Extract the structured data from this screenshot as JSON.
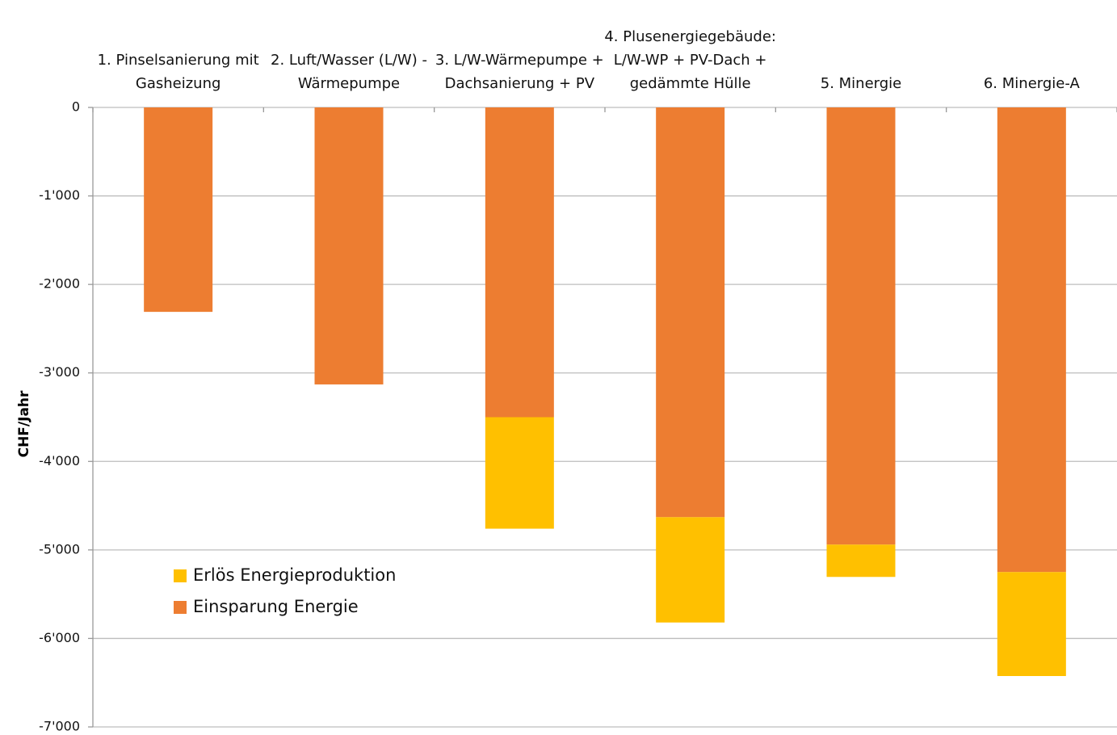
{
  "chart_data": {
    "type": "stacked_bar",
    "y_label": "CHF/Jahr",
    "categories": [
      "1. Pinselsanierung mit Gasheizung",
      "2. Luft/Wasser (L/W) - Wärmepumpe",
      "3. L/W-Wärmepumpe + Dachsanierung + PV",
      "4. Plusenergiegebäude: L/W-WP + PV-Dach + gedämmte Hülle",
      "5. Minergie",
      "6. Minergie-A"
    ],
    "series": [
      {
        "name": "Einsparung Energie",
        "color": "#ED7D31",
        "values": [
          -2310,
          -3130,
          -3500,
          -4630,
          -4940,
          -5250
        ]
      },
      {
        "name": "Erlös Energieproduktion",
        "color": "#FFC000",
        "values": [
          0,
          0,
          -1260,
          -1190,
          -365,
          -1175
        ]
      }
    ],
    "ylim": [
      -7000,
      0
    ],
    "yticks": [
      0,
      {
        "value": -1000,
        "label": "-1'000"
      },
      {
        "value": -2000,
        "label": "-2'000"
      },
      {
        "value": -3000,
        "label": "-3'000"
      },
      {
        "value": -4000,
        "label": "-4'000"
      },
      {
        "value": -5000,
        "label": "-5'000"
      },
      {
        "value": -6000,
        "label": "-6'000"
      },
      {
        "value": -7000,
        "label": "-7'000"
      }
    ],
    "grid": true,
    "legend": "lower left"
  }
}
